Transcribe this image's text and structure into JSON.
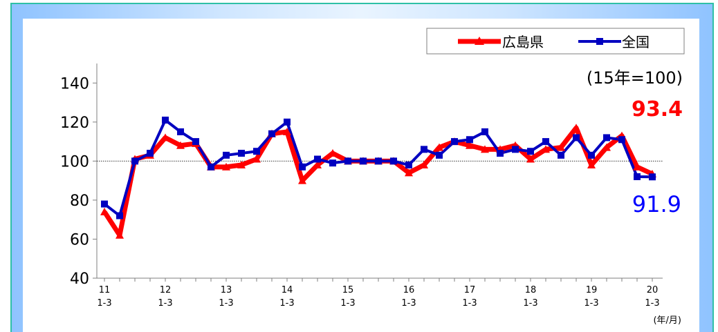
{
  "chart_data": {
    "type": "line",
    "x_labels": [
      {
        "year": "11",
        "quarter": "1-3"
      },
      {
        "year": "12",
        "quarter": "1-3"
      },
      {
        "year": "13",
        "quarter": "1-3"
      },
      {
        "year": "14",
        "quarter": "1-3"
      },
      {
        "year": "15",
        "quarter": "1-3"
      },
      {
        "year": "16",
        "quarter": "1-3"
      },
      {
        "year": "17",
        "quarter": "1-3"
      },
      {
        "year": "18",
        "quarter": "1-3"
      },
      {
        "year": "19",
        "quarter": "1-3"
      },
      {
        "year": "20",
        "quarter": "1-3"
      }
    ],
    "xlabel": "(年/月)",
    "ylim": [
      40,
      150
    ],
    "yticks": [
      40,
      60,
      80,
      100,
      120,
      140
    ],
    "reference_line": 100,
    "base_note": "(15年=100)",
    "series": [
      {
        "name": "広島県",
        "color": "#ff0000",
        "marker": "triangle",
        "values": [
          74,
          62,
          101,
          103,
          112,
          108,
          109,
          97,
          97,
          98,
          101,
          114,
          115,
          90,
          98,
          104,
          100,
          100,
          100,
          100,
          94,
          98,
          107,
          110,
          108,
          106,
          106,
          108,
          101,
          106,
          107,
          117,
          98,
          107,
          113,
          97,
          93.4
        ]
      },
      {
        "name": "全国",
        "color": "#0000c0",
        "marker": "square",
        "values": [
          78,
          72,
          100,
          104,
          121,
          115,
          110,
          97,
          103,
          104,
          105,
          114,
          120,
          97,
          101,
          99,
          100,
          100,
          100,
          100,
          98,
          106,
          103,
          110,
          111,
          115,
          104,
          106,
          105,
          110,
          103,
          112,
          103,
          112,
          111,
          92,
          91.9
        ]
      }
    ],
    "end_labels": {
      "hiroshima": "93.4",
      "national": "91.9"
    }
  }
}
